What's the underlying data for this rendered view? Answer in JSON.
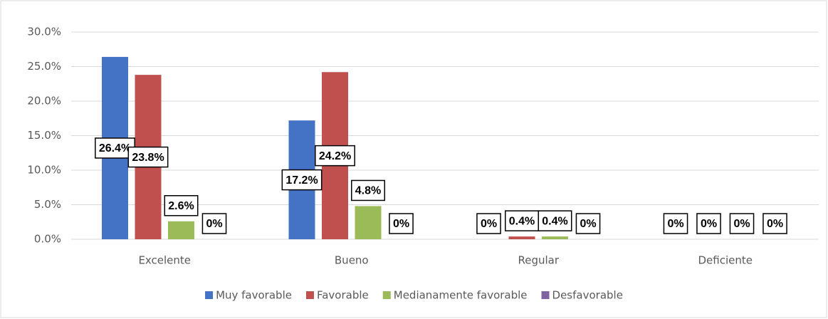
{
  "chart_data": {
    "type": "bar",
    "categories": [
      "Excelente",
      "Bueno",
      "Regular",
      "Deficiente"
    ],
    "series": [
      {
        "name": "Muy favorable",
        "color": "#4472c4",
        "values": [
          26.4,
          17.2,
          0,
          0
        ],
        "value_labels": [
          "26.4%",
          "17.2%",
          "0%",
          "0%"
        ]
      },
      {
        "name": "Favorable",
        "color": "#c0504d",
        "values": [
          23.8,
          24.2,
          0.4,
          0
        ],
        "value_labels": [
          "23.8%",
          "24.2%",
          "0.4%",
          "0%"
        ]
      },
      {
        "name": "Medianamente favorable",
        "color": "#9bbb59",
        "values": [
          2.6,
          4.8,
          0.4,
          0
        ],
        "value_labels": [
          "2.6%",
          "4.8%",
          "0.4%",
          "0%"
        ]
      },
      {
        "name": "Desfavorable",
        "color": "#8064a2",
        "values": [
          0,
          0,
          0,
          0
        ],
        "value_labels": [
          "0%",
          "0%",
          "0%",
          "0%"
        ]
      }
    ],
    "ylim": [
      0,
      30
    ],
    "yticks": [
      {
        "value": 0,
        "label": "0.0%"
      },
      {
        "value": 5,
        "label": "5.0%"
      },
      {
        "value": 10,
        "label": "10.0%"
      },
      {
        "value": 15,
        "label": "15.0%"
      },
      {
        "value": 20,
        "label": "20.0%"
      },
      {
        "value": 25,
        "label": "25.0%"
      },
      {
        "value": 30,
        "label": "30.0%"
      }
    ],
    "grid": true,
    "legend": "bottom"
  }
}
